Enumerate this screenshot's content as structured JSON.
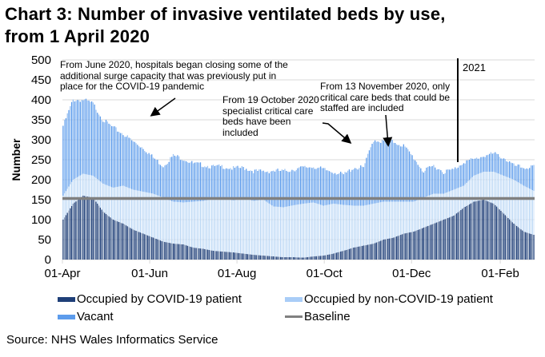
{
  "title_line1": "Chart 3: Number of invasive ventilated beds by use,",
  "title_line2": "from 1 April 2020",
  "source": "Source: NHS Wales Informatics Service",
  "colors": {
    "covid": "#1f3f78",
    "noncovid": "#bcd8f5",
    "vacant": "#5d9cec",
    "baseline": "#808080",
    "grid": "#d9d9d9"
  },
  "chart_data": {
    "type": "bar",
    "stacked": true,
    "title": "Chart 3: Number of invasive ventilated beds by use, from 1 April 2020",
    "xlabel": "",
    "ylabel": "Number",
    "ylim": [
      0,
      500
    ],
    "yticks": [
      "0",
      "50",
      "100",
      "150",
      "200",
      "250",
      "300",
      "350",
      "400",
      "450",
      "500"
    ],
    "xticks": [
      "01-Apr",
      "01-Jun",
      "01-Aug",
      "01-Oct",
      "01-Dec",
      "01-Feb"
    ],
    "xtick_days": [
      0,
      61,
      122,
      183,
      244,
      306
    ],
    "days": 330,
    "sample_interval_days": 7,
    "grid": true,
    "legend_position": "bottom",
    "series": [
      {
        "name": "Occupied by COVID-19 patient",
        "values": [
          100,
          140,
          160,
          155,
          120,
          100,
          90,
          75,
          65,
          55,
          45,
          40,
          38,
          30,
          27,
          22,
          20,
          18,
          15,
          12,
          10,
          8,
          6,
          6,
          5,
          8,
          10,
          15,
          22,
          30,
          35,
          40,
          50,
          55,
          65,
          70,
          80,
          90,
          100,
          110,
          130,
          145,
          150,
          140,
          115,
          90,
          70,
          62
        ]
      },
      {
        "name": "Occupied by non-COVID-19 patient",
        "values": [
          60,
          60,
          55,
          55,
          70,
          80,
          95,
          100,
          105,
          110,
          110,
          105,
          105,
          115,
          120,
          130,
          135,
          130,
          140,
          135,
          140,
          125,
          125,
          130,
          135,
          135,
          125,
          125,
          115,
          105,
          100,
          100,
          95,
          90,
          80,
          75,
          75,
          75,
          65,
          65,
          55,
          65,
          70,
          80,
          95,
          110,
          115,
          110
        ]
      },
      {
        "name": "Vacant",
        "values": [
          175,
          200,
          185,
          180,
          160,
          150,
          130,
          120,
          110,
          90,
          80,
          115,
          110,
          95,
          90,
          80,
          78,
          80,
          75,
          75,
          70,
          90,
          90,
          90,
          90,
          90,
          90,
          80,
          75,
          95,
          95,
          160,
          150,
          150,
          140,
          110,
          65,
          70,
          55,
          50,
          60,
          40,
          40,
          45,
          45,
          35,
          45,
          60
        ]
      },
      {
        "name": "Baseline",
        "type": "line",
        "values": [
          153
        ]
      }
    ],
    "annotations": [
      "From June 2020, hospitals began closing some of the additional surge capacity that was previously put in place for the COVID-19 pandemic",
      "From 19 October 2020 specialist critical care beds have been included",
      "From 13 November 2020, only critical care beds that could be staffed are included",
      "2021"
    ]
  },
  "annotation_lines": {
    "a1": [
      "From June 2020, hospitals began closing some of the",
      "additional surge capacity that was previously put in",
      "place for the COVID-19 pandemic"
    ],
    "a2": [
      "From 19 October 2020",
      "specialist critical care",
      "beds have been",
      "included"
    ],
    "a3": [
      "From 13 November 2020, only",
      "critical care beds that could be",
      "staffed are included"
    ],
    "a4": "2021"
  }
}
